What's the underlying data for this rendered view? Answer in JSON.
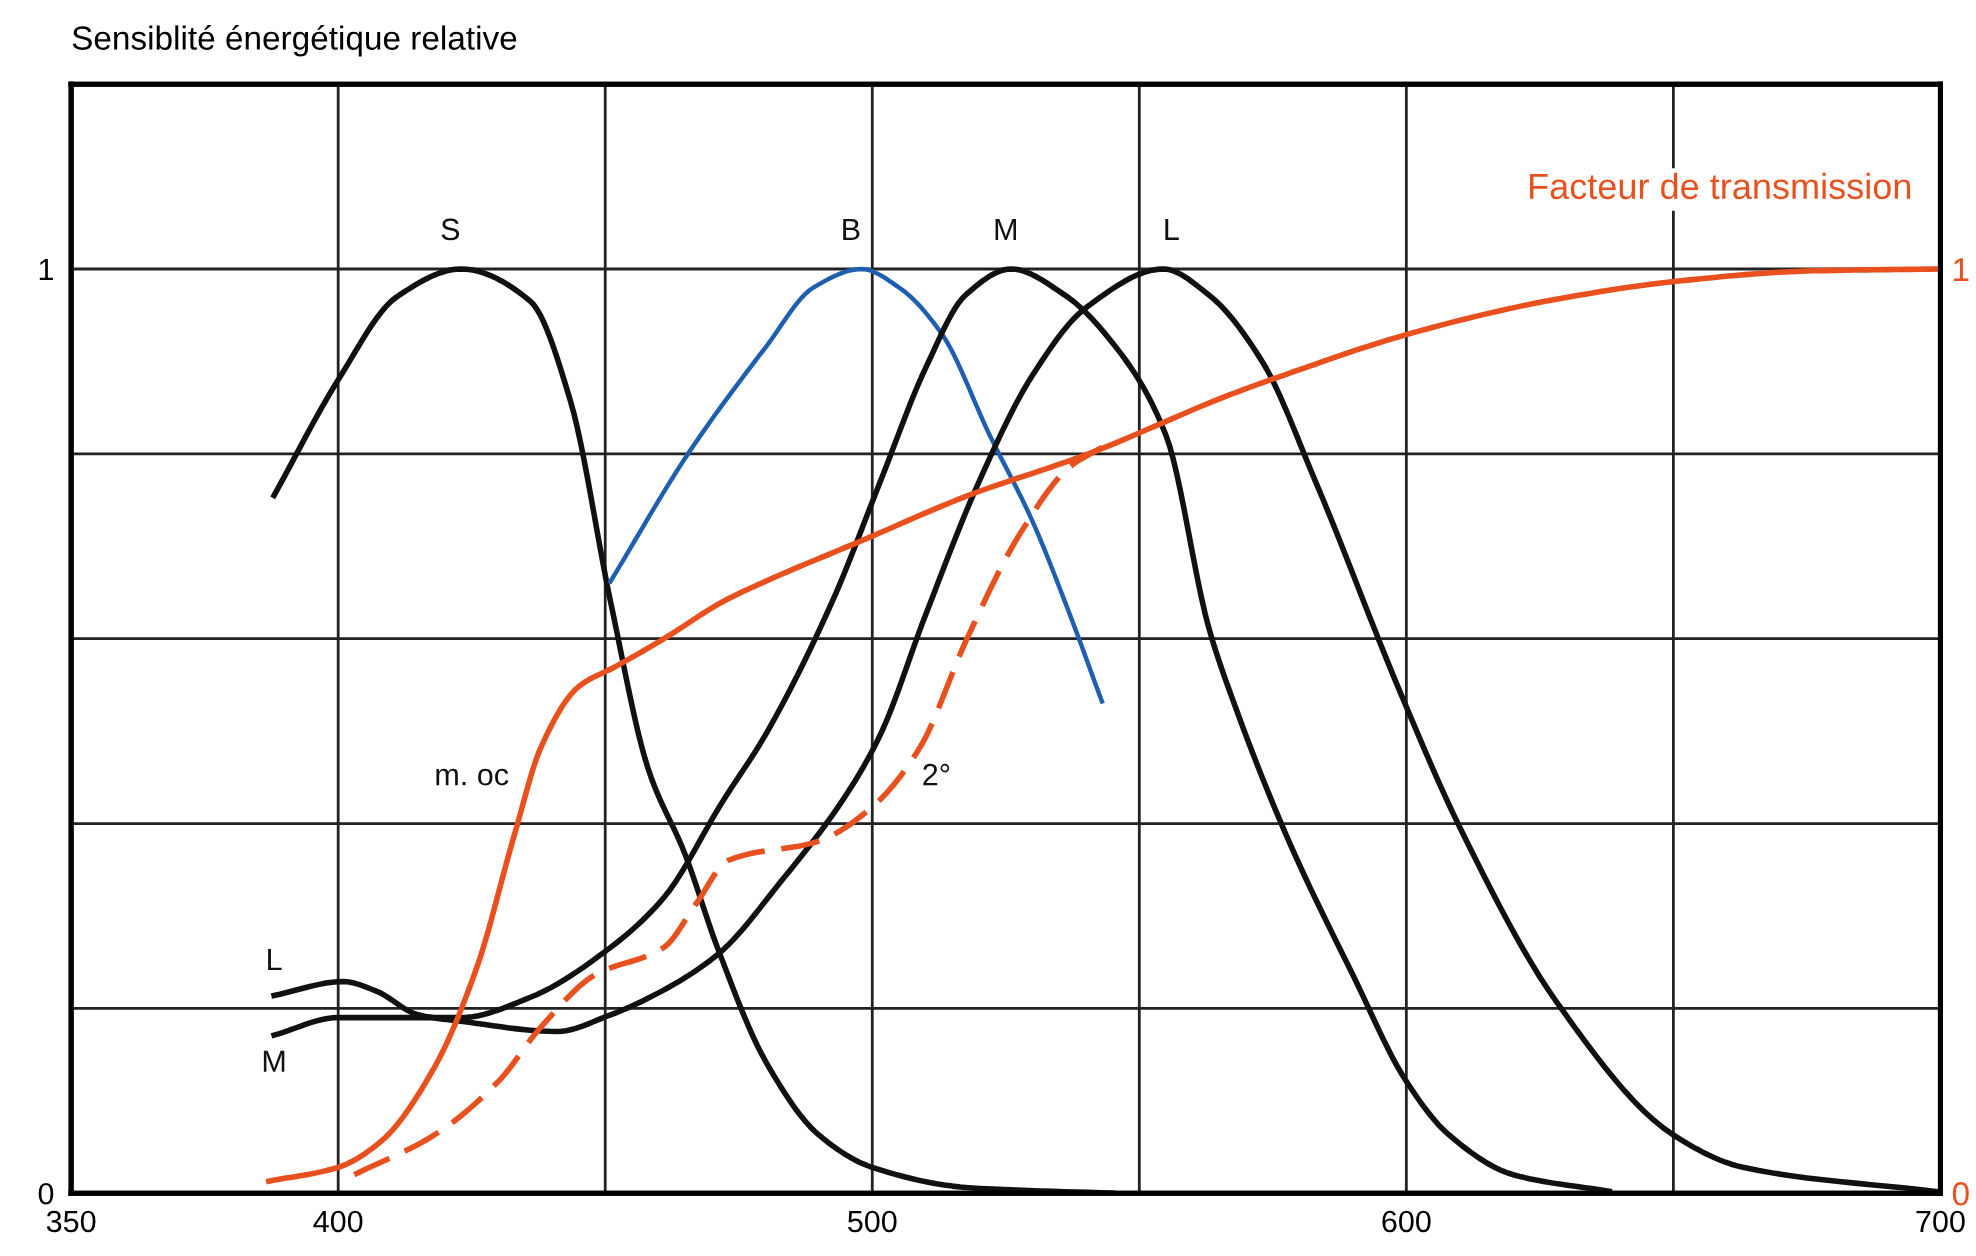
{
  "chart_data": {
    "type": "line",
    "ylabel": "Sensiblité énergétique relative",
    "y2label": "Facteur de transmission",
    "xlim": [
      350,
      700
    ],
    "xticks": [
      350,
      400,
      {
        "value": 450,
        "label": null
      },
      500,
      {
        "value": 550,
        "label": null
      },
      600,
      {
        "value": 650,
        "label": null
      },
      700
    ],
    "ylim": [
      0,
      1.2
    ],
    "yticks": [
      0,
      {
        "value": 0.2,
        "label": null
      },
      {
        "value": 0.4,
        "label": null
      },
      {
        "value": 0.6,
        "label": null
      },
      {
        "value": 0.8,
        "label": null
      },
      1
    ],
    "y2lim": [
      0,
      1.2
    ],
    "y2ticks": [
      0,
      1
    ],
    "grid": true,
    "legend": false,
    "marker": "none",
    "series": [
      {
        "color": "#111111",
        "x": [
          388,
          400,
          411,
          423,
          436,
          443.5,
          451,
          458,
          465,
          471,
          480,
          490,
          500,
          518,
          545
        ],
        "values": [
          0.755,
          0.88,
          0.97,
          1.0,
          0.965,
          0.857,
          0.64,
          0.46,
          0.366,
          0.266,
          0.143,
          0.063,
          0.028,
          0.006,
          0
        ]
      },
      {
        "color": "#1f5fb0",
        "x": [
          451,
          465.5,
          480,
          489,
          498,
          505,
          513,
          522,
          530,
          537,
          543
        ],
        "values": [
          0.662,
          0.8,
          0.915,
          0.98,
          1.0,
          0.98,
          0.93,
          0.82,
          0.727,
          0.626,
          0.532
        ]
      },
      {
        "color": "#111111",
        "x": [
          388,
          400,
          411,
          423,
          436,
          451,
          461,
          472,
          480,
          492.5,
          501.5,
          510,
          517.5,
          526,
          536,
          545,
          555,
          563,
          568,
          578,
          590,
          600,
          608,
          620,
          638
        ],
        "values": [
          0.171,
          0.19,
          0.19,
          0.19,
          0.212,
          0.266,
          0.32,
          0.424,
          0.496,
          0.64,
          0.77,
          0.893,
          0.972,
          1.0,
          0.972,
          0.92,
          0.82,
          0.612,
          0.526,
          0.381,
          0.236,
          0.121,
          0.063,
          0.02,
          0.002
        ]
      },
      {
        "color": "#111111",
        "x": [
          388,
          401,
          407,
          415,
          423,
          441,
          451,
          457,
          471,
          483,
          495,
          501.5,
          510,
          520,
          530,
          540,
          554.5,
          563,
          573,
          583,
          599,
          610,
          628,
          650,
          663,
          699
        ],
        "values": [
          0.214,
          0.229,
          0.219,
          0.193,
          0.186,
          0.175,
          0.193,
          0.208,
          0.258,
          0.338,
          0.43,
          0.496,
          0.626,
          0.77,
          0.885,
          0.958,
          1.0,
          0.972,
          0.9,
          0.77,
          0.54,
          0.396,
          0.208,
          0.063,
          0.028,
          0.002
        ]
      },
      {
        "color": "#e8501e",
        "axis": "y2",
        "x": [
          387,
          400,
          408,
          418,
          426,
          433,
          438,
          445,
          452,
          461,
          472,
          480,
          498,
          518,
          540,
          567,
          577,
          600,
          626,
          651,
          676,
          700
        ],
        "values": [
          0.013,
          0.028,
          0.056,
          0.136,
          0.245,
          0.388,
          0.483,
          0.548,
          0.57,
          0.6,
          0.64,
          0.662,
          0.706,
          0.755,
          0.799,
          0.864,
          0.885,
          0.929,
          0.965,
          0.987,
          0.998,
          1.0
        ]
      },
      {
        "color": "#e8501e",
        "axis": "y2",
        "line_style": "dashed",
        "x": [
          403,
          418,
          430,
          438,
          448,
          461,
          467,
          473,
          490,
          500,
          509,
          517.5,
          527.5,
          537,
          543
        ],
        "values": [
          0.02,
          0.063,
          0.121,
          0.18,
          0.236,
          0.266,
          0.313,
          0.36,
          0.381,
          0.418,
          0.483,
          0.597,
          0.712,
          0.786,
          0.807
        ]
      }
    ],
    "annotations": [
      "S",
      "B",
      "M",
      "L",
      "L",
      "M",
      "m. oc",
      "2°"
    ]
  }
}
